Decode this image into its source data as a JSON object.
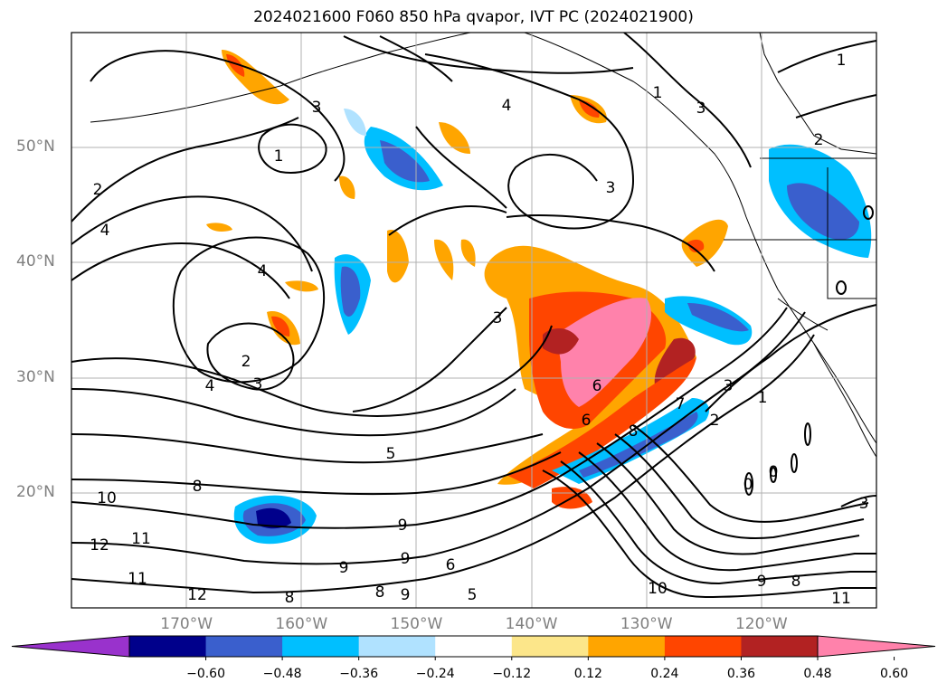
{
  "title": "2024021600 F060 850 hPa qvapor, IVT PC (2024021900)",
  "lat_labels": [
    {
      "text": "50°N",
      "lat": 50
    },
    {
      "text": "40°N",
      "lat": 40
    },
    {
      "text": "30°N",
      "lat": 30
    },
    {
      "text": "20°N",
      "lat": 20
    }
  ],
  "lon_labels": [
    {
      "text": "170°W",
      "lon": -170
    },
    {
      "text": "160°W",
      "lon": -160
    },
    {
      "text": "150°W",
      "lon": -150
    },
    {
      "text": "140°W",
      "lon": -140
    },
    {
      "text": "130°W",
      "lon": -130
    },
    {
      "text": "120°W",
      "lon": -120
    }
  ],
  "map_extent": {
    "lon_min": -180,
    "lon_max": -110,
    "lat_min": 10,
    "lat_max": 60
  },
  "colorbar": {
    "ticks": [
      "−0.60",
      "−0.48",
      "−0.36",
      "−0.24",
      "−0.12",
      "0.12",
      "0.24",
      "0.36",
      "0.48",
      "0.60"
    ],
    "colors": [
      "#9932cc",
      "#00008b",
      "#3a5fcd",
      "#00bfff",
      "#b0e2ff",
      "#ffffff",
      "#fce68a",
      "#ffa500",
      "#ff4500",
      "#b22222",
      "#ff82ab"
    ]
  },
  "contour_labels": [
    "1",
    "2",
    "3",
    "4",
    "1",
    "2",
    "4",
    "4",
    "3",
    "2",
    "3",
    "4",
    "3",
    "3",
    "6",
    "6",
    "7",
    "8",
    "3",
    "2",
    "1",
    "5",
    "8",
    "10",
    "11",
    "12",
    "11",
    "12",
    "9",
    "9",
    "9",
    "8",
    "9",
    "6",
    "5",
    "8",
    "10",
    "9",
    "8",
    "0",
    "0",
    "3",
    "11",
    "1"
  ]
}
